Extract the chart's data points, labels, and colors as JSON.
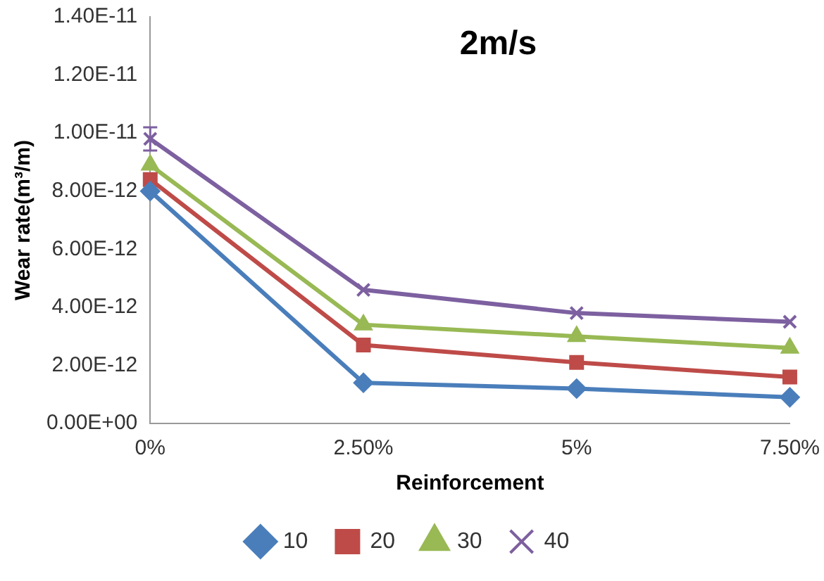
{
  "chart_data": {
    "type": "line",
    "title": "2m/s",
    "xlabel": "Reinforcement",
    "ylabel": "Wear rate(m³/m)",
    "categories": [
      "0%",
      "2.50%",
      "5%",
      "7.50%"
    ],
    "series": [
      {
        "name": "10",
        "color": "#4a7ebb",
        "marker": "diamond",
        "values": [
          8e-12,
          1.4e-12,
          1.2e-12,
          9e-13
        ]
      },
      {
        "name": "20",
        "color": "#be4b48",
        "marker": "square",
        "values": [
          8.4e-12,
          2.7e-12,
          2.1e-12,
          1.6e-12
        ]
      },
      {
        "name": "30",
        "color": "#98b954",
        "marker": "triangle",
        "values": [
          8.9e-12,
          3.4e-12,
          3e-12,
          2.6e-12
        ]
      },
      {
        "name": "40",
        "color": "#7d60a0",
        "marker": "cross",
        "values": [
          9.8e-12,
          4.6e-12,
          3.8e-12,
          3.5e-12
        ],
        "errors": [
          4e-13,
          null,
          null,
          null
        ]
      }
    ],
    "ylim": [
      0,
      1.4e-11
    ],
    "yticks": [
      {
        "value": 0,
        "label": "0.00E+00"
      },
      {
        "value": 2e-12,
        "label": "2.00E-12"
      },
      {
        "value": 4e-12,
        "label": "4.00E-12"
      },
      {
        "value": 6e-12,
        "label": "6.00E-12"
      },
      {
        "value": 8e-12,
        "label": "8.00E-12"
      },
      {
        "value": 1e-11,
        "label": "1.00E-11"
      },
      {
        "value": 1.2e-11,
        "label": "1.20E-11"
      },
      {
        "value": 1.4e-11,
        "label": "1.40E-11"
      }
    ],
    "grid": false,
    "legend": "bottom",
    "line_style": "solid"
  }
}
